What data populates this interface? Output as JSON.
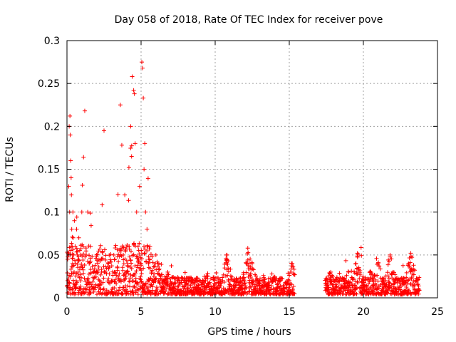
{
  "chart_data": {
    "type": "scatter",
    "title": "Day 058 of 2018, Rate Of TEC Index for receiver pove",
    "xlabel": "GPS time / hours",
    "ylabel": "ROTI / TECUs",
    "xlim": [
      0,
      25
    ],
    "ylim": [
      0,
      0.3
    ],
    "x_ticks": [
      0,
      5,
      10,
      15,
      20,
      25
    ],
    "x_tick_labels": [
      "0",
      "5",
      "10",
      "15",
      "20",
      "25"
    ],
    "y_ticks": [
      0,
      0.05,
      0.1,
      0.15,
      0.2,
      0.25,
      0.3
    ],
    "y_tick_labels": [
      "0",
      "0.05",
      "0.1",
      "0.15",
      "0.2",
      "0.25",
      "0.3"
    ],
    "grid": true,
    "marker": "+",
    "marker_color": "#ff0000",
    "series": [
      {
        "name": "ROTI",
        "x": [
          0.05,
          0.1,
          0.12,
          0.15,
          0.18,
          0.2,
          0.22,
          0.25,
          0.28,
          0.3,
          0.32,
          0.35,
          0.38,
          0.4,
          0.42,
          0.45,
          0.48,
          0.5,
          0.55,
          0.6,
          0.65,
          0.7,
          0.75,
          0.8,
          0.9,
          1.0,
          1.1,
          1.2,
          1.3,
          1.4,
          1.5,
          1.6,
          1.8,
          2.0,
          2.2,
          2.5,
          2.6,
          2.8,
          3.0,
          3.2,
          3.5,
          3.6,
          3.7,
          3.8,
          3.9,
          4.0,
          4.1,
          4.2,
          4.3,
          4.4,
          4.5,
          4.55,
          4.6,
          4.7,
          4.8,
          4.9,
          5.0,
          5.05,
          5.1,
          5.15,
          5.2,
          5.25,
          5.3,
          5.4,
          5.5,
          5.6,
          5.7,
          5.8,
          6.0,
          6.2,
          6.5,
          6.8,
          7.0,
          7.5,
          8.0,
          8.5,
          9.0,
          9.5,
          10.0,
          10.5,
          10.8,
          11.0,
          11.5,
          12.0,
          12.2,
          12.5,
          12.8,
          13.0,
          13.5,
          14.0,
          14.5,
          15.0,
          15.1,
          15.2,
          17.5,
          17.8,
          18.0,
          18.5,
          19.0,
          19.5,
          19.6,
          20.0,
          20.5,
          21.0,
          21.5,
          21.8,
          22.0,
          22.5,
          23.0,
          23.2,
          23.5
        ],
        "y": [
          0.02,
          0.05,
          0.13,
          0.2,
          0.1,
          0.212,
          0.19,
          0.16,
          0.14,
          0.12,
          0.08,
          0.06,
          0.04,
          0.1,
          0.07,
          0.05,
          0.03,
          0.09,
          0.06,
          0.04,
          0.08,
          0.05,
          0.03,
          0.07,
          0.05,
          0.1,
          0.06,
          0.218,
          0.05,
          0.1,
          0.04,
          0.06,
          0.03,
          0.05,
          0.02,
          0.195,
          0.03,
          0.04,
          0.02,
          0.03,
          0.02,
          0.225,
          0.178,
          0.05,
          0.12,
          0.03,
          0.04,
          0.06,
          0.2,
          0.258,
          0.242,
          0.238,
          0.18,
          0.1,
          0.06,
          0.13,
          0.04,
          0.275,
          0.268,
          0.233,
          0.15,
          0.18,
          0.1,
          0.08,
          0.04,
          0.06,
          0.03,
          0.02,
          0.05,
          0.04,
          0.02,
          0.03,
          0.01,
          0.02,
          0.015,
          0.02,
          0.01,
          0.025,
          0.015,
          0.02,
          0.05,
          0.015,
          0.02,
          0.01,
          0.058,
          0.04,
          0.02,
          0.01,
          0.015,
          0.01,
          0.01,
          0.02,
          0.03,
          0.04,
          0.01,
          0.03,
          0.02,
          0.015,
          0.03,
          0.04,
          0.052,
          0.02,
          0.03,
          0.04,
          0.02,
          0.05,
          0.03,
          0.02,
          0.01,
          0.052,
          0.02
        ]
      }
    ],
    "gap": [
      15.4,
      17.4
    ]
  }
}
